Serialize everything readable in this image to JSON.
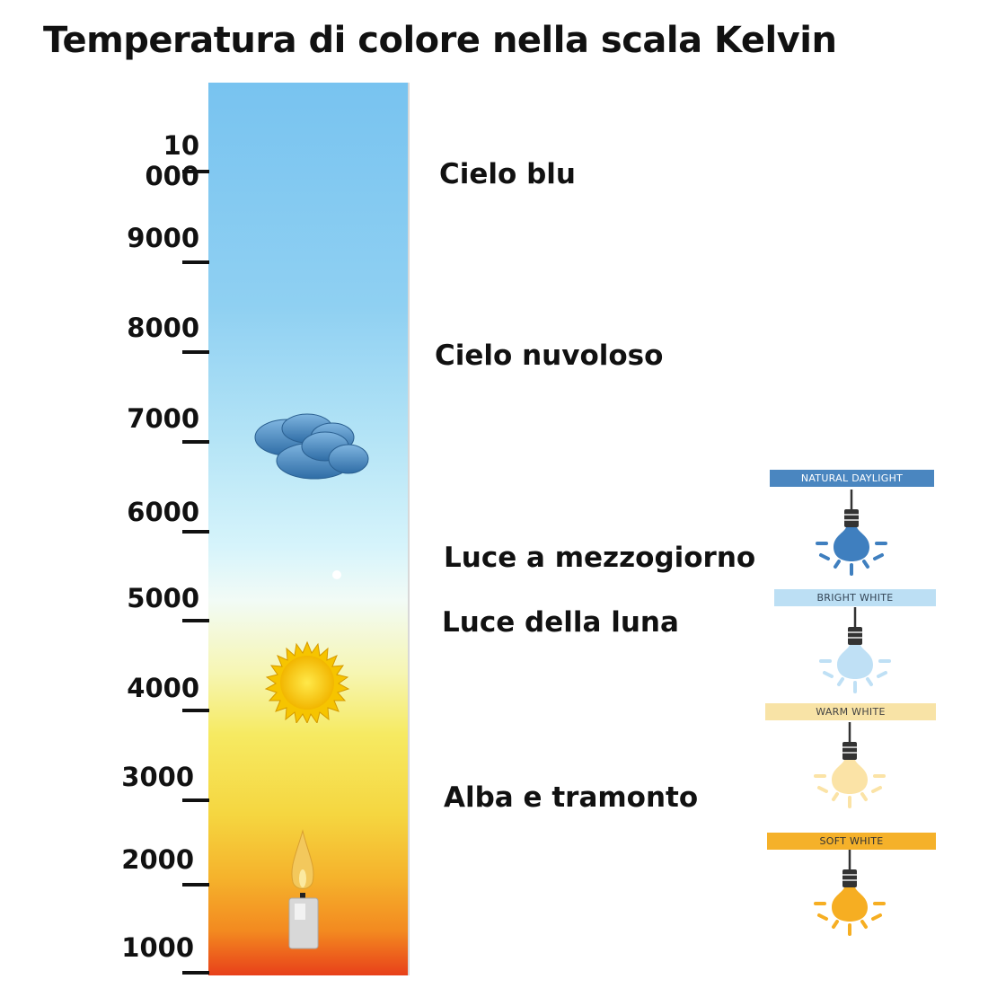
{
  "title": "Temperatura di colore nella scala Kelvin",
  "scale": {
    "ticks": [
      "10 000",
      "9000",
      "8000",
      "7000",
      "6000",
      "5000",
      "4000",
      "3000",
      "2000",
      "1000"
    ]
  },
  "labels": {
    "cielo_blu": "Cielo blu",
    "cielo_nuvoloso": "Cielo nuvoloso",
    "luce_mezzogiorno": "Luce a mezzogiorno",
    "luce_luna": "Luce della luna",
    "alba_tramonto": "Alba e tramonto"
  },
  "bulbs": [
    {
      "label": "NATURAL DAYLIGHT",
      "tag_color": "#4a86c0",
      "bulb_color": "#3f7fbf"
    },
    {
      "label": "BRIGHT WHITE",
      "tag_color": "#bcdff4",
      "bulb_color": "#bfe0f5"
    },
    {
      "label": "WARM WHITE",
      "tag_color": "#f8e3a6",
      "bulb_color": "#fbe3a6"
    },
    {
      "label": "SOFT WHITE",
      "tag_color": "#f5b12a",
      "bulb_color": "#f6ae22"
    }
  ]
}
